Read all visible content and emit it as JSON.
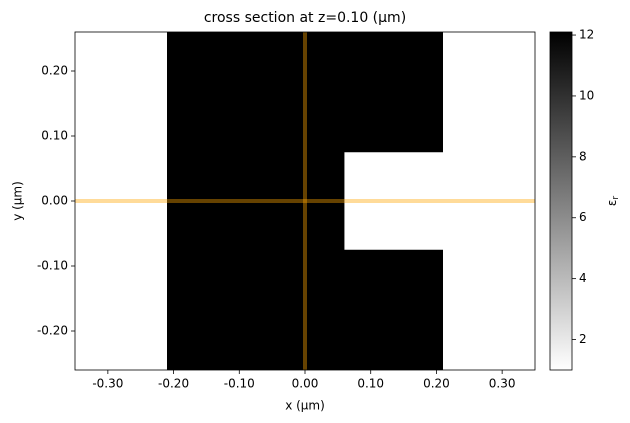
{
  "chart_data": {
    "type": "image",
    "title": "cross section at z=0.10 (µm)",
    "xlabel": "x (µm)",
    "ylabel": "y (µm)",
    "xlim": [
      -0.35,
      0.35
    ],
    "ylim": [
      -0.26,
      0.26
    ],
    "xticks": [
      {
        "value": -0.3,
        "label": "-0.30"
      },
      {
        "value": -0.2,
        "label": "-0.20"
      },
      {
        "value": -0.1,
        "label": "-0.10"
      },
      {
        "value": 0,
        "label": "0.00"
      },
      {
        "value": 0.1,
        "label": "0.10"
      },
      {
        "value": 0.2,
        "label": "0.20"
      },
      {
        "value": 0.3,
        "label": "0.30"
      }
    ],
    "yticks": [
      {
        "value": -0.2,
        "label": "-0.20"
      },
      {
        "value": -0.1,
        "label": "-0.10"
      },
      {
        "value": 0,
        "label": "0.00"
      },
      {
        "value": 0.1,
        "label": "0.10"
      },
      {
        "value": 0.2,
        "label": "0.20"
      }
    ],
    "background": 1,
    "regions": [
      {
        "x": [
          -0.21,
          0.21
        ],
        "y": [
          -0.26,
          0.26
        ],
        "value": 12.1
      },
      {
        "x": [
          0.06,
          0.21
        ],
        "y": [
          -0.075,
          0.075
        ],
        "value": 1
      }
    ],
    "lines": [
      {
        "orientation": "vertical",
        "value": 0
      },
      {
        "orientation": "horizontal",
        "value": 0
      }
    ],
    "line_color": "orange",
    "line_alpha": 0.4,
    "colormap": "Greys",
    "clim": [
      1,
      12.1
    ],
    "colorbar_ticks": [
      2,
      4,
      6,
      8,
      10,
      12
    ],
    "colorbar_label": {
      "symbol": "ε",
      "subscript": "r"
    }
  }
}
